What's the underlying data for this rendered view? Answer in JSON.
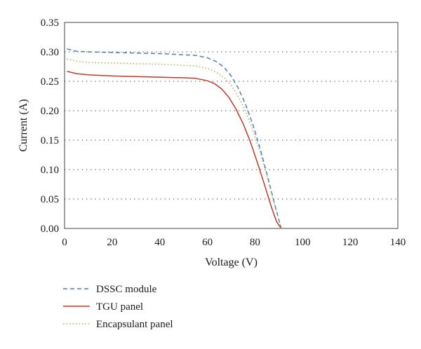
{
  "chart_data": {
    "type": "line",
    "xlabel": "Voltage (V)",
    "ylabel": "Current (A)",
    "xlim": [
      0,
      140
    ],
    "ylim": [
      0,
      0.35
    ],
    "x_ticks": [
      0,
      20,
      40,
      60,
      80,
      100,
      120,
      140
    ],
    "x_tick_labels": [
      "0",
      "20",
      "40",
      "60",
      "80",
      "100",
      "120",
      "140"
    ],
    "y_ticks": [
      0,
      0.05,
      0.1,
      0.15,
      0.2,
      0.25,
      0.3,
      0.35
    ],
    "y_tick_labels": [
      "0.00",
      "0.05",
      "0.10",
      "0.15",
      "0.20",
      "0.25",
      "0.30",
      "0.35"
    ],
    "grid": "horizontal dotted",
    "legend_position": "bottom-left",
    "series": [
      {
        "name": "DSSC module",
        "color": "#4a7ebb",
        "style": "dashed",
        "x": [
          1,
          5,
          10,
          20,
          30,
          40,
          50,
          55,
          60,
          64,
          67,
          70,
          73,
          76,
          79,
          82,
          85,
          88,
          90,
          91
        ],
        "y": [
          0.305,
          0.301,
          0.3,
          0.299,
          0.298,
          0.297,
          0.295,
          0.294,
          0.29,
          0.283,
          0.274,
          0.259,
          0.238,
          0.211,
          0.178,
          0.138,
          0.093,
          0.045,
          0.015,
          0
        ]
      },
      {
        "name": "TGU panel",
        "color": "#c0392b",
        "style": "solid",
        "x": [
          1,
          5,
          10,
          20,
          30,
          40,
          50,
          55,
          60,
          63,
          66,
          69,
          72,
          75,
          78,
          81,
          84,
          87,
          89,
          91
        ],
        "y": [
          0.267,
          0.263,
          0.261,
          0.259,
          0.258,
          0.257,
          0.256,
          0.255,
          0.251,
          0.246,
          0.237,
          0.223,
          0.203,
          0.178,
          0.148,
          0.112,
          0.074,
          0.035,
          0.012,
          0
        ]
      },
      {
        "name": "Encapsulant panel",
        "color": "#a8b45a",
        "style": "dotted",
        "x": [
          1,
          5,
          10,
          20,
          30,
          40,
          50,
          55,
          60,
          64,
          67,
          70,
          73,
          76,
          79,
          82,
          85,
          88,
          90,
          91
        ],
        "y": [
          0.288,
          0.284,
          0.282,
          0.281,
          0.28,
          0.279,
          0.277,
          0.276,
          0.272,
          0.265,
          0.256,
          0.243,
          0.224,
          0.199,
          0.168,
          0.131,
          0.089,
          0.043,
          0.014,
          0
        ]
      }
    ]
  }
}
